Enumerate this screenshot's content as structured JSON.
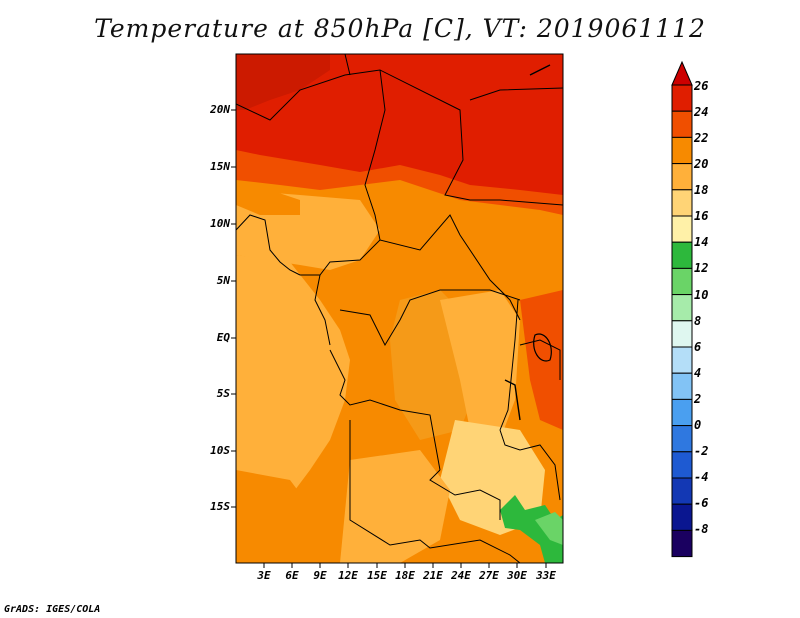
{
  "title": "Temperature at 850hPa [C], VT: 2019061112",
  "credit": "GrADS: IGES/COLA",
  "map": {
    "lat_labels": [
      "20N",
      "15N",
      "10N",
      "5N",
      "EQ",
      "5S",
      "10S",
      "15S"
    ],
    "lon_labels": [
      "3E",
      "6E",
      "9E",
      "12E",
      "15E",
      "18E",
      "21E",
      "24E",
      "27E",
      "30E",
      "33E"
    ],
    "lat_range": [
      -20,
      24.5
    ],
    "lon_range": [
      0,
      35
    ]
  },
  "colorbar": {
    "levels": [
      "26",
      "24",
      "22",
      "20",
      "18",
      "16",
      "14",
      "12",
      "10",
      "8",
      "6",
      "4",
      "2",
      "0",
      "-2",
      "-4",
      "-6",
      "-8"
    ],
    "colors": [
      "#a50000",
      "#e01e00",
      "#f04f00",
      "#f78a00",
      "#ffb03a",
      "#ffd476",
      "#fff1a8",
      "#2db83c",
      "#6ad467",
      "#a6ebaa",
      "#dff7f0",
      "#b4def8",
      "#82c3f5",
      "#4a9ff0",
      "#2f78e0",
      "#1e5ad2",
      "#1338b4",
      "#0a1690",
      "#1a0060"
    ],
    "cap_top": "#cc0000",
    "cap_bottom": "#d4d8f8"
  }
}
